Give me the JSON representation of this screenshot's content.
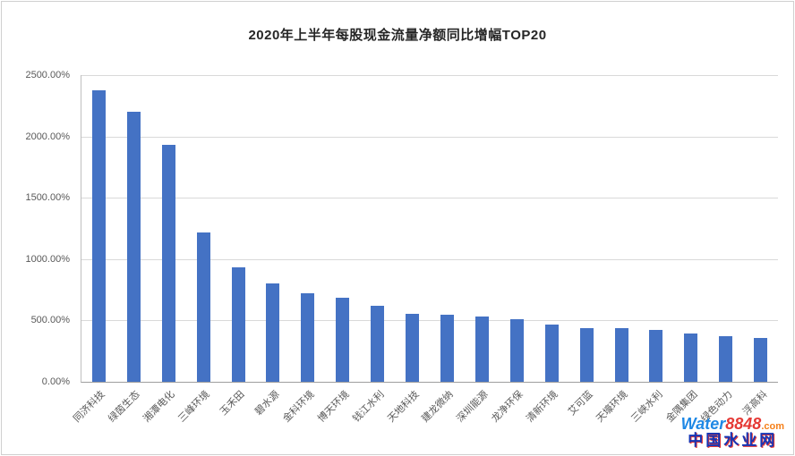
{
  "chart_data": {
    "type": "bar",
    "title": "2020年上半年每股现金流量净额同比增幅TOP20",
    "categories": [
      "同济科技",
      "绿茵生态",
      "湘潭电化",
      "三峰环境",
      "玉禾田",
      "碧水源",
      "金科环境",
      "博天环境",
      "钱江水利",
      "天地科技",
      "建龙微纳",
      "深圳能源",
      "龙净环保",
      "清新环境",
      "艾可蓝",
      "天壕环境",
      "三峡水利",
      "金隅集团",
      "绿色动力",
      "浮高科"
    ],
    "values": [
      2375,
      2200,
      1930,
      1220,
      930,
      800,
      720,
      685,
      620,
      555,
      550,
      530,
      510,
      465,
      440,
      435,
      425,
      395,
      370,
      360
    ],
    "xlabel": "",
    "ylabel": "",
    "ylim": [
      0,
      2500
    ],
    "ytick_values": [
      0,
      500,
      1000,
      1500,
      2000,
      2500
    ],
    "ytick_labels": [
      "0.00%",
      "500.00%",
      "1000.00%",
      "1500.00%",
      "2000.00%",
      "2500.00%"
    ],
    "bar_color": "#4472C4",
    "grid": "horizontal",
    "legend": "none"
  },
  "watermark": {
    "brand_prefix": "Water",
    "brand_number": "8848",
    "brand_suffix": ".com",
    "site_name": "中国水业网"
  }
}
